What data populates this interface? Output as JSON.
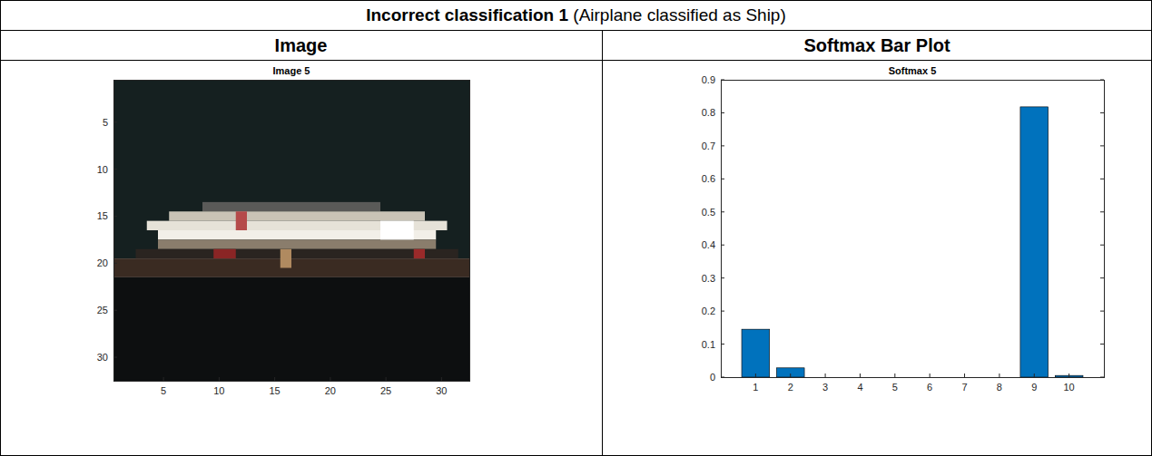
{
  "table": {
    "title": "Incorrect classification 1",
    "note": "(Airplane classified as Ship)",
    "headers": [
      "Image",
      "Softmax Bar Plot"
    ]
  },
  "chart_data": [
    {
      "type": "image",
      "title": "Image 5",
      "xlim": [
        0.5,
        32.5
      ],
      "ylim": [
        0.5,
        32.5
      ],
      "xticks": [
        5,
        10,
        15,
        20,
        25,
        30
      ],
      "yticks": [
        5,
        10,
        15,
        20,
        25,
        30
      ]
    },
    {
      "type": "bar",
      "title": "Softmax 5",
      "categories": [
        "1",
        "2",
        "3",
        "4",
        "5",
        "6",
        "7",
        "8",
        "9",
        "10"
      ],
      "values": [
        0.145,
        0.028,
        0,
        0,
        0,
        0,
        0,
        0,
        0.818,
        0.005
      ],
      "color": "#0072bd",
      "ylim": [
        0,
        0.9
      ],
      "yticks": [
        0,
        0.1,
        0.2,
        0.3,
        0.4,
        0.5,
        0.6,
        0.7,
        0.8,
        0.9
      ]
    }
  ]
}
